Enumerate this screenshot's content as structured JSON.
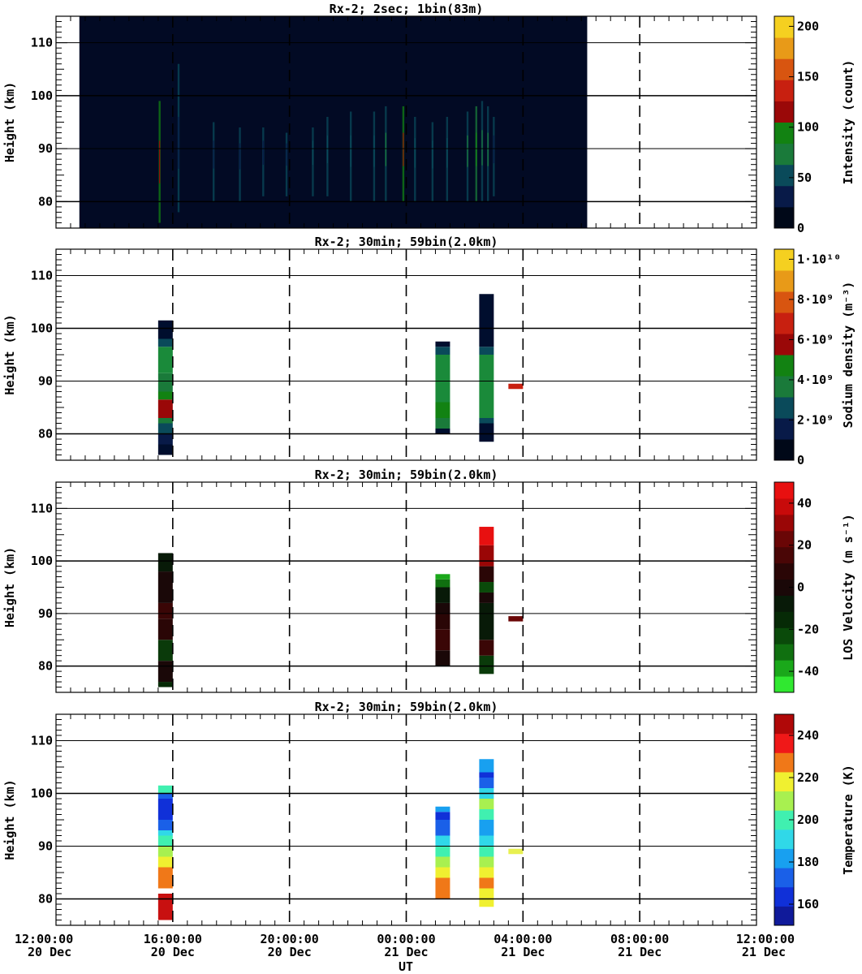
{
  "chart_data": [
    {
      "type": "heatmap",
      "title": "Rx-2;  2sec; 1bin(83m)",
      "ylabel": "Height (km)",
      "ylim": [
        75,
        115
      ],
      "yticks": [
        80,
        90,
        100,
        110
      ],
      "xlim_hours": [
        12,
        36
      ],
      "colorbar": {
        "label": "Intensity (count)",
        "range": [
          0,
          210
        ],
        "ticks": [
          {
            "v": 0,
            "t": "0"
          },
          {
            "v": 50,
            "t": "50"
          },
          {
            "v": 100,
            "t": "100"
          },
          {
            "v": 150,
            "t": "150"
          },
          {
            "v": 200,
            "t": "200"
          }
        ],
        "colors": [
          "#000818",
          "#081a48",
          "#0a4a5a",
          "#1a7a3a",
          "#128212",
          "#9a0808",
          "#c82010",
          "#d85510",
          "#e89a18",
          "#f5d020"
        ]
      },
      "background": {
        "t0": 12.8,
        "t1": 30.2,
        "color": "#020a24"
      },
      "streaks": [
        {
          "t": 15.55,
          "h": [
            76,
            99
          ],
          "c": 120
        },
        {
          "t": 16.2,
          "h": [
            78,
            106
          ],
          "c": 40
        },
        {
          "t": 17.4,
          "h": [
            80,
            95
          ],
          "c": 30
        },
        {
          "t": 18.3,
          "h": [
            80,
            94
          ],
          "c": 40
        },
        {
          "t": 19.1,
          "h": [
            81,
            94
          ],
          "c": 30
        },
        {
          "t": 19.9,
          "h": [
            81,
            93
          ],
          "c": 35
        },
        {
          "t": 20.8,
          "h": [
            81,
            94
          ],
          "c": 50
        },
        {
          "t": 21.3,
          "h": [
            81,
            96
          ],
          "c": 60
        },
        {
          "t": 22.1,
          "h": [
            80,
            97
          ],
          "c": 60
        },
        {
          "t": 22.9,
          "h": [
            80,
            97
          ],
          "c": 50
        },
        {
          "t": 23.3,
          "h": [
            80,
            98
          ],
          "c": 70
        },
        {
          "t": 23.9,
          "h": [
            80,
            98
          ],
          "c": 110
        },
        {
          "t": 24.3,
          "h": [
            80,
            96
          ],
          "c": 60
        },
        {
          "t": 24.9,
          "h": [
            80,
            95
          ],
          "c": 50
        },
        {
          "t": 25.4,
          "h": [
            80,
            96
          ],
          "c": 60
        },
        {
          "t": 26.1,
          "h": [
            80,
            97
          ],
          "c": 70
        },
        {
          "t": 26.4,
          "h": [
            80,
            98
          ],
          "c": 90
        },
        {
          "t": 26.6,
          "h": [
            80,
            99
          ],
          "c": 80
        },
        {
          "t": 26.8,
          "h": [
            80,
            98
          ],
          "c": 70
        },
        {
          "t": 27.0,
          "h": [
            81,
            96
          ],
          "c": 40
        }
      ]
    },
    {
      "type": "heatmap",
      "title": "Rx-2; 30min; 59bin(2.0km)",
      "ylabel": "Height (km)",
      "ylim": [
        75,
        115
      ],
      "yticks": [
        80,
        90,
        100,
        110
      ],
      "xlim_hours": [
        12,
        36
      ],
      "colorbar": {
        "label": "Sodium density (m⁻³)",
        "range": [
          0,
          10500000000
        ],
        "ticks": [
          {
            "v": 0,
            "t": "0"
          },
          {
            "v": 2000000000,
            "t": "2·10⁹"
          },
          {
            "v": 4000000000,
            "t": "4·10⁹"
          },
          {
            "v": 6000000000,
            "t": "6·10⁹"
          },
          {
            "v": 8000000000,
            "t": "8·10⁹"
          },
          {
            "v": 10000000000,
            "t": "1·10¹⁰"
          }
        ],
        "colors": [
          "#000818",
          "#081a48",
          "#0a4a5a",
          "#1a7a3a",
          "#128212",
          "#9a0808",
          "#c82010",
          "#d85510",
          "#e89a18",
          "#f5d020"
        ]
      },
      "columns": [
        {
          "t": 15.75,
          "w": 0.5,
          "cells": [
            [
              76,
              78,
              "#000e2e"
            ],
            [
              78,
              80,
              "#081a48"
            ],
            [
              80,
              82,
              "#0a4a5a"
            ],
            [
              82,
              83,
              "#1a7a3a"
            ],
            [
              83,
              86.5,
              "#9a0808"
            ],
            [
              86.5,
              88,
              "#128212"
            ],
            [
              88,
              91.5,
              "#1a7a3a"
            ],
            [
              91.5,
              96.5,
              "#1a8a3a"
            ],
            [
              96.5,
              98,
              "#0a4a5a"
            ],
            [
              98,
              101.5,
              "#000e2e"
            ]
          ]
        },
        {
          "t": 25.25,
          "w": 0.5,
          "cells": [
            [
              80,
              81,
              "#000e2e"
            ],
            [
              81,
              83,
              "#1a7a3a"
            ],
            [
              83,
              86,
              "#128212"
            ],
            [
              86,
              95,
              "#1a8a3a"
            ],
            [
              95,
              96.5,
              "#0a4a5a"
            ],
            [
              96.5,
              97.5,
              "#000e2e"
            ]
          ]
        },
        {
          "t": 26.75,
          "w": 0.5,
          "cells": [
            [
              78.5,
              82,
              "#000e2e"
            ],
            [
              82,
              83,
              "#0a4a5a"
            ],
            [
              83,
              95,
              "#1a8a3a"
            ],
            [
              95,
              96.5,
              "#0a4a5a"
            ],
            [
              96.5,
              106.5,
              "#000e2e"
            ]
          ]
        },
        {
          "t": 27.75,
          "w": 0.5,
          "cells": [
            [
              88.5,
              89.5,
              "#c82010"
            ]
          ]
        }
      ]
    },
    {
      "type": "heatmap",
      "title": "Rx-2; 30min; 59bin(2.0km)",
      "ylabel": "Height (km)",
      "ylim": [
        75,
        115
      ],
      "yticks": [
        80,
        90,
        100,
        110
      ],
      "xlim_hours": [
        12,
        36
      ],
      "colorbar": {
        "label": "LOS Velocity (m s⁻¹)",
        "range": [
          -50,
          50
        ],
        "ticks": [
          {
            "v": -40,
            "t": "-40"
          },
          {
            "v": -20,
            "t": "-20"
          },
          {
            "v": 0,
            "t": "0"
          },
          {
            "v": 20,
            "t": "20"
          },
          {
            "v": 40,
            "t": "40"
          }
        ],
        "colors": [
          "#30e830",
          "#1aa81a",
          "#107010",
          "#0a4a0a",
          "#062a06",
          "#081a08",
          "#1a0808",
          "#2a0606",
          "#4a0606",
          "#6a0606",
          "#9a0606",
          "#c80a0a",
          "#e81010"
        ]
      },
      "columns": [
        {
          "t": 15.75,
          "w": 0.5,
          "cells": [
            [
              76,
              77,
              "#062a06"
            ],
            [
              77,
              81,
              "#1a0808"
            ],
            [
              81,
              85,
              "#0a3a0a"
            ],
            [
              85,
              89,
              "#2a0606"
            ],
            [
              89,
              92,
              "#3a0606"
            ],
            [
              92,
              98,
              "#1a0808"
            ],
            [
              98,
              101.5,
              "#081a08"
            ]
          ]
        },
        {
          "t": 25.25,
          "w": 0.5,
          "cells": [
            [
              80,
              83,
              "#1a0808"
            ],
            [
              83,
              87,
              "#3a0606"
            ],
            [
              87,
              90,
              "#2a0606"
            ],
            [
              90,
              92,
              "#1a0808"
            ],
            [
              92,
              95,
              "#081a08"
            ],
            [
              95,
              96.5,
              "#107010"
            ],
            [
              96.5,
              97.5,
              "#1aa81a"
            ]
          ]
        },
        {
          "t": 26.75,
          "w": 0.5,
          "cells": [
            [
              78.5,
              82,
              "#0a3a0a"
            ],
            [
              82,
              85,
              "#3a0606"
            ],
            [
              85,
              92,
              "#081a08"
            ],
            [
              92,
              94,
              "#1a0808"
            ],
            [
              94,
              96,
              "#0a4a0a"
            ],
            [
              96,
              99,
              "#2a0606"
            ],
            [
              99,
              103,
              "#9a0606"
            ],
            [
              103,
              106.5,
              "#e81010"
            ]
          ]
        },
        {
          "t": 27.75,
          "w": 0.5,
          "cells": [
            [
              88.5,
              89.5,
              "#6a0606"
            ]
          ]
        }
      ]
    },
    {
      "type": "heatmap",
      "title": "Rx-2; 30min; 59bin(2.0km)",
      "ylabel": "Height (km)",
      "xlabel": "UT",
      "ylim": [
        75,
        115
      ],
      "yticks": [
        80,
        90,
        100,
        110
      ],
      "xlim_hours": [
        12,
        36
      ],
      "xticks": [
        {
          "h": 12,
          "time": "12:00:00",
          "date": "20 Dec"
        },
        {
          "h": 16,
          "time": "16:00:00",
          "date": "20 Dec"
        },
        {
          "h": 20,
          "time": "20:00:00",
          "date": "20 Dec"
        },
        {
          "h": 24,
          "time": "00:00:00",
          "date": "21 Dec"
        },
        {
          "h": 28,
          "time": "04:00:00",
          "date": "21 Dec"
        },
        {
          "h": 32,
          "time": "08:00:00",
          "date": "21 Dec"
        },
        {
          "h": 36,
          "time": "12:00:00",
          "date": "21 Dec"
        }
      ],
      "colorbar": {
        "label": "Temperature (K)",
        "range": [
          150,
          250
        ],
        "ticks": [
          {
            "v": 160,
            "t": "160"
          },
          {
            "v": 180,
            "t": "180"
          },
          {
            "v": 200,
            "t": "200"
          },
          {
            "v": 220,
            "t": "220"
          },
          {
            "v": 240,
            "t": "240"
          }
        ],
        "colors": [
          "#101a9a",
          "#1030d8",
          "#1a60e8",
          "#18a0f0",
          "#30d8e8",
          "#40f0b0",
          "#a8f050",
          "#f0f030",
          "#f07818",
          "#f01818",
          "#b00808"
        ]
      },
      "columns": [
        {
          "t": 15.75,
          "w": 0.5,
          "cells": [
            [
              76,
              81,
              "#c81010"
            ],
            [
              81,
              82,
              "#ffffff"
            ],
            [
              82,
              86,
              "#f07818"
            ],
            [
              86,
              88,
              "#f0f030"
            ],
            [
              88,
              90,
              "#a8f050"
            ],
            [
              90,
              92,
              "#40f0b0"
            ],
            [
              92,
              93,
              "#30d8e8"
            ],
            [
              93,
              95,
              "#1a60e8"
            ],
            [
              95,
              99,
              "#1030d8"
            ],
            [
              99,
              100,
              "#1a60e8"
            ],
            [
              100,
              101.5,
              "#40f0b0"
            ]
          ]
        },
        {
          "t": 25.25,
          "w": 0.5,
          "cells": [
            [
              80,
              82,
              "#f07818"
            ],
            [
              82,
              84,
              "#f07818"
            ],
            [
              84,
              86,
              "#f0f030"
            ],
            [
              86,
              88,
              "#a8f050"
            ],
            [
              88,
              90,
              "#40f0b0"
            ],
            [
              90,
              92,
              "#30d8e8"
            ],
            [
              92,
              95,
              "#1a60e8"
            ],
            [
              95,
              96.5,
              "#1030d8"
            ],
            [
              96.5,
              97.5,
              "#18a0f0"
            ]
          ]
        },
        {
          "t": 26.75,
          "w": 0.5,
          "cells": [
            [
              78.5,
              80,
              "#f0f030"
            ],
            [
              80,
              82,
              "#f0f030"
            ],
            [
              82,
              84,
              "#f07818"
            ],
            [
              84,
              86,
              "#f0f030"
            ],
            [
              86,
              88,
              "#a8f050"
            ],
            [
              88,
              90,
              "#40f0b0"
            ],
            [
              90,
              92,
              "#30d8e8"
            ],
            [
              92,
              95,
              "#18a0f0"
            ],
            [
              95,
              97,
              "#40f0b0"
            ],
            [
              97,
              99,
              "#a8f050"
            ],
            [
              99,
              101,
              "#30d8e8"
            ],
            [
              101,
              103,
              "#1a60e8"
            ],
            [
              103,
              104,
              "#1030d8"
            ],
            [
              104,
              106.5,
              "#18a0f0"
            ]
          ]
        },
        {
          "t": 27.75,
          "w": 0.5,
          "cells": [
            [
              88.5,
              89.5,
              "#e8f050"
            ]
          ]
        }
      ]
    }
  ]
}
